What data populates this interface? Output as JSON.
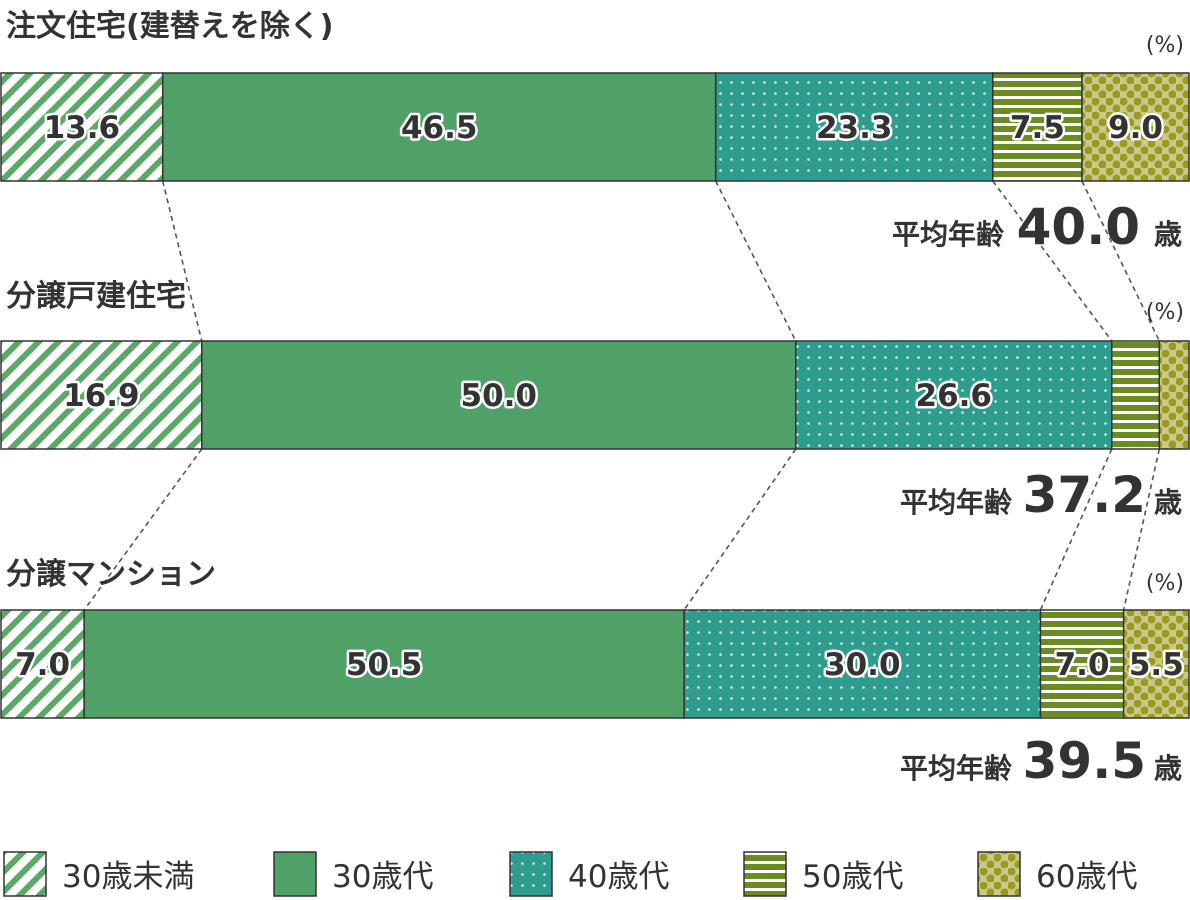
{
  "chart_data": {
    "type": "bar",
    "orientation": "horizontal-stacked-100",
    "unit": "(%)",
    "avg_label": "平均年齢",
    "avg_suffix": "歳",
    "categories": [
      "30歳未満",
      "30歳代",
      "40歳代",
      "50歳代",
      "60歳代"
    ],
    "colors": {
      "30歳未満": "#5ba868",
      "30歳代": "#4fa167",
      "40歳代": "#2e9d8f",
      "50歳代": "#6b8c23",
      "60歳代": "#9c9a1e"
    },
    "groups": [
      {
        "title": "注文住宅(建替えを除く)",
        "values": [
          13.6,
          46.5,
          23.3,
          7.5,
          9.0
        ],
        "labels": [
          "13.6",
          "46.5",
          "23.3",
          "7.5",
          "9.0"
        ],
        "average_age": "40.0"
      },
      {
        "title": "分譲戸建住宅",
        "values": [
          16.9,
          50.0,
          26.6,
          4.0,
          2.5
        ],
        "labels": [
          "16.9",
          "50.0",
          "26.6",
          "",
          ""
        ],
        "average_age": "37.2"
      },
      {
        "title": "分譲マンション",
        "values": [
          7.0,
          50.5,
          30.0,
          7.0,
          5.5
        ],
        "labels": [
          "7.0",
          "50.5",
          "30.0",
          "7.0",
          "5.5"
        ],
        "average_age": "39.5"
      }
    ],
    "legend_placement": "bottom"
  }
}
